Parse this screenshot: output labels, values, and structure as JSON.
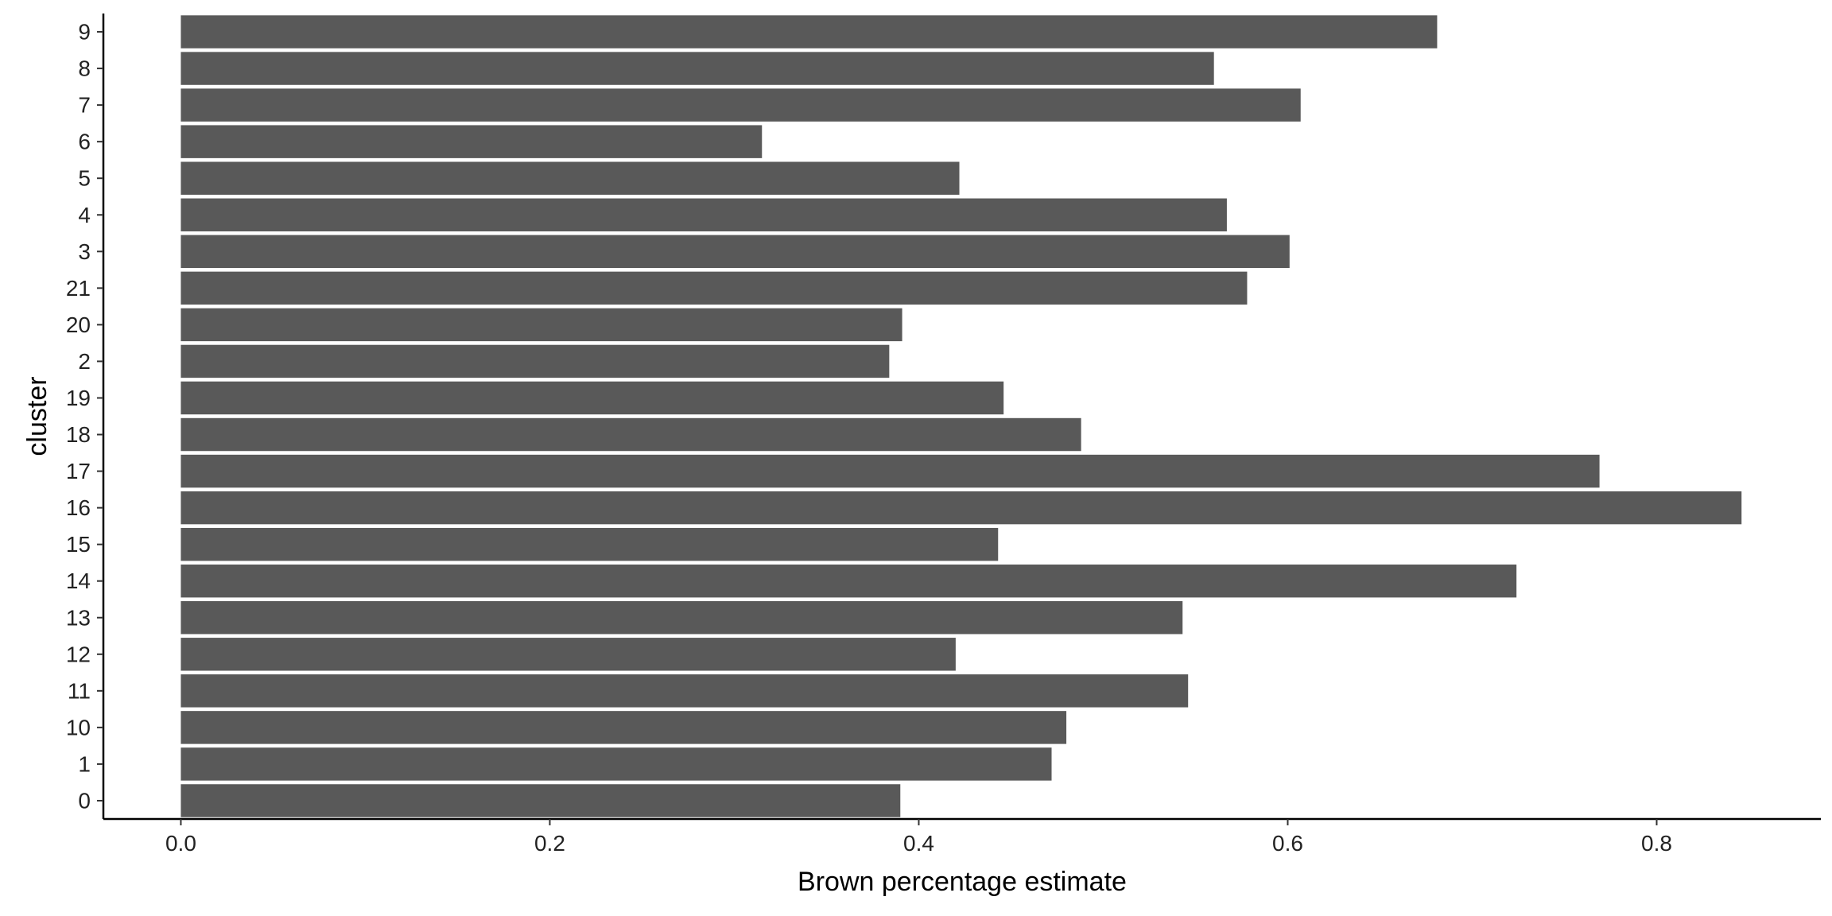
{
  "chart_data": {
    "type": "bar",
    "orientation": "horizontal",
    "title": "",
    "xlabel": "Brown percentage estimate",
    "ylabel": "cluster",
    "categories": [
      "0",
      "1",
      "10",
      "11",
      "12",
      "13",
      "14",
      "15",
      "16",
      "17",
      "18",
      "19",
      "2",
      "20",
      "21",
      "3",
      "4",
      "5",
      "6",
      "7",
      "8",
      "9"
    ],
    "values": [
      0.39,
      0.472,
      0.48,
      0.546,
      0.42,
      0.543,
      0.724,
      0.443,
      0.846,
      0.769,
      0.488,
      0.446,
      0.384,
      0.391,
      0.578,
      0.601,
      0.567,
      0.422,
      0.315,
      0.607,
      0.56,
      0.681
    ],
    "xlim": [
      -0.042,
      0.889
    ],
    "xticks": [
      0.0,
      0.2,
      0.4,
      0.6,
      0.8
    ],
    "xtick_labels": [
      "0.0",
      "0.2",
      "0.4",
      "0.6",
      "0.8"
    ],
    "bar_color": "#595959",
    "axis_color": "#000000",
    "grid": false,
    "legend": "none"
  }
}
